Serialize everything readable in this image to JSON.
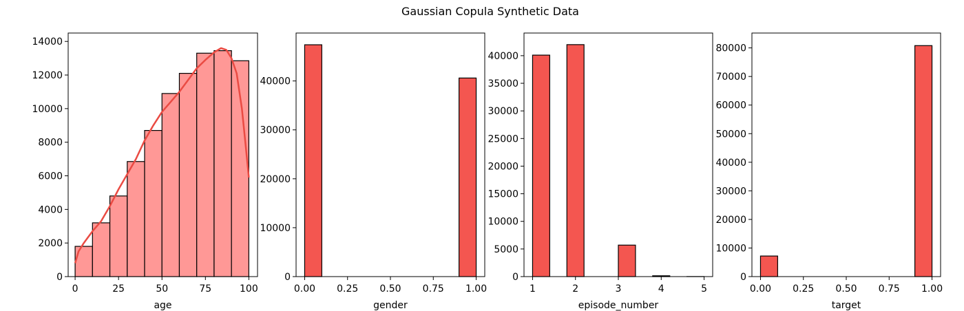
{
  "figure": {
    "suptitle": "Gaussian Copula Synthetic Data"
  },
  "colors": {
    "bar_light": "#FF9896",
    "bar_dark": "#F45650",
    "kde_line": "#EA4B43",
    "edge": "#000000"
  },
  "chart_data": [
    {
      "type": "bar",
      "xlabel": "age",
      "ylabel": "",
      "style": "light",
      "has_kde": true,
      "xlim": [
        -4,
        105
      ],
      "ylim": [
        0,
        14500
      ],
      "xticks": [
        0,
        25,
        50,
        75,
        100
      ],
      "xtick_labels": [
        "0",
        "25",
        "50",
        "75",
        "100"
      ],
      "yticks": [
        0,
        2000,
        4000,
        6000,
        8000,
        10000,
        12000,
        14000
      ],
      "ytick_labels": [
        "0",
        "2000",
        "4000",
        "6000",
        "8000",
        "10000",
        "12000",
        "14000"
      ],
      "bins": [
        {
          "x0": 0,
          "x1": 10,
          "value": 1800
        },
        {
          "x0": 10,
          "x1": 20,
          "value": 3200
        },
        {
          "x0": 20,
          "x1": 30,
          "value": 4800
        },
        {
          "x0": 30,
          "x1": 40,
          "value": 6850
        },
        {
          "x0": 40,
          "x1": 50,
          "value": 8700
        },
        {
          "x0": 50,
          "x1": 60,
          "value": 10900
        },
        {
          "x0": 60,
          "x1": 70,
          "value": 12100
        },
        {
          "x0": 70,
          "x1": 80,
          "value": 13300
        },
        {
          "x0": 80,
          "x1": 90,
          "value": 13450
        },
        {
          "x0": 90,
          "x1": 100,
          "value": 12850
        }
      ],
      "kde": [
        [
          0,
          800
        ],
        [
          2,
          1500
        ],
        [
          5,
          2000
        ],
        [
          10,
          2700
        ],
        [
          15,
          3300
        ],
        [
          20,
          4200
        ],
        [
          25,
          5200
        ],
        [
          30,
          6100
        ],
        [
          35,
          7000
        ],
        [
          40,
          8100
        ],
        [
          45,
          9000
        ],
        [
          50,
          9800
        ],
        [
          55,
          10400
        ],
        [
          60,
          11000
        ],
        [
          65,
          11700
        ],
        [
          70,
          12400
        ],
        [
          75,
          12900
        ],
        [
          80,
          13350
        ],
        [
          84,
          13600
        ],
        [
          87,
          13500
        ],
        [
          90,
          13000
        ],
        [
          93,
          12100
        ],
        [
          96,
          10000
        ],
        [
          98,
          8000
        ],
        [
          100,
          5900
        ]
      ]
    },
    {
      "type": "bar",
      "xlabel": "gender",
      "ylabel": "",
      "style": "dark",
      "has_kde": false,
      "xlim": [
        -0.05,
        1.05
      ],
      "ylim": [
        0,
        49800
      ],
      "xticks": [
        0,
        0.25,
        0.5,
        0.75,
        1.0
      ],
      "xtick_labels": [
        "0.00",
        "0.25",
        "0.50",
        "0.75",
        "1.00"
      ],
      "yticks": [
        0,
        10000,
        20000,
        30000,
        40000
      ],
      "ytick_labels": [
        "0",
        "10000",
        "20000",
        "30000",
        "40000"
      ],
      "bins": [
        {
          "x0": 0.0,
          "x1": 0.1,
          "value": 47400
        },
        {
          "x0": 0.1,
          "x1": 0.2,
          "value": 0
        },
        {
          "x0": 0.2,
          "x1": 0.3,
          "value": 0
        },
        {
          "x0": 0.3,
          "x1": 0.4,
          "value": 0
        },
        {
          "x0": 0.4,
          "x1": 0.5,
          "value": 0
        },
        {
          "x0": 0.5,
          "x1": 0.6,
          "value": 0
        },
        {
          "x0": 0.6,
          "x1": 0.7,
          "value": 0
        },
        {
          "x0": 0.7,
          "x1": 0.8,
          "value": 0
        },
        {
          "x0": 0.8,
          "x1": 0.9,
          "value": 0
        },
        {
          "x0": 0.9,
          "x1": 1.0,
          "value": 40600
        }
      ]
    },
    {
      "type": "bar",
      "xlabel": "episode_number",
      "ylabel": "",
      "style": "dark",
      "has_kde": false,
      "xlim": [
        0.8,
        5.2
      ],
      "ylim": [
        0,
        44100
      ],
      "xticks": [
        1,
        2,
        3,
        4,
        5
      ],
      "xtick_labels": [
        "1",
        "2",
        "3",
        "4",
        "5"
      ],
      "yticks": [
        0,
        5000,
        10000,
        15000,
        20000,
        25000,
        30000,
        35000,
        40000
      ],
      "ytick_labels": [
        "0",
        "5000",
        "10000",
        "15000",
        "20000",
        "25000",
        "30000",
        "35000",
        "40000"
      ],
      "bins": [
        {
          "x0": 1.0,
          "x1": 1.4,
          "value": 40100
        },
        {
          "x0": 1.4,
          "x1": 1.8,
          "value": 0
        },
        {
          "x0": 1.8,
          "x1": 2.2,
          "value": 42000
        },
        {
          "x0": 2.2,
          "x1": 2.6,
          "value": 0
        },
        {
          "x0": 2.6,
          "x1": 3.0,
          "value": 0
        },
        {
          "x0": 3.0,
          "x1": 3.4,
          "value": 5700
        },
        {
          "x0": 3.4,
          "x1": 3.8,
          "value": 0
        },
        {
          "x0": 3.8,
          "x1": 4.2,
          "value": 150
        },
        {
          "x0": 4.2,
          "x1": 4.6,
          "value": 0
        },
        {
          "x0": 4.6,
          "x1": 5.0,
          "value": 10
        }
      ]
    },
    {
      "type": "bar",
      "xlabel": "target",
      "ylabel": "",
      "style": "dark",
      "has_kde": false,
      "xlim": [
        -0.05,
        1.05
      ],
      "ylim": [
        0,
        85200
      ],
      "xticks": [
        0,
        0.25,
        0.5,
        0.75,
        1.0
      ],
      "xtick_labels": [
        "0.00",
        "0.25",
        "0.50",
        "0.75",
        "1.00"
      ],
      "yticks": [
        0,
        10000,
        20000,
        30000,
        40000,
        50000,
        60000,
        70000,
        80000
      ],
      "ytick_labels": [
        "0",
        "10000",
        "20000",
        "30000",
        "40000",
        "50000",
        "60000",
        "70000",
        "80000"
      ],
      "bins": [
        {
          "x0": 0.0,
          "x1": 0.1,
          "value": 7200
        },
        {
          "x0": 0.1,
          "x1": 0.2,
          "value": 0
        },
        {
          "x0": 0.2,
          "x1": 0.3,
          "value": 0
        },
        {
          "x0": 0.3,
          "x1": 0.4,
          "value": 0
        },
        {
          "x0": 0.4,
          "x1": 0.5,
          "value": 0
        },
        {
          "x0": 0.5,
          "x1": 0.6,
          "value": 0
        },
        {
          "x0": 0.6,
          "x1": 0.7,
          "value": 0
        },
        {
          "x0": 0.7,
          "x1": 0.8,
          "value": 0
        },
        {
          "x0": 0.8,
          "x1": 0.9,
          "value": 0
        },
        {
          "x0": 0.9,
          "x1": 1.0,
          "value": 80800
        }
      ]
    }
  ]
}
